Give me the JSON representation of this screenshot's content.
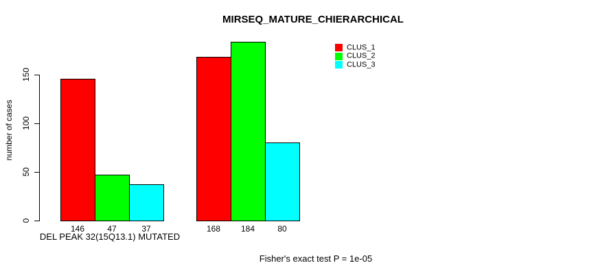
{
  "figure": {
    "title": "MIRSEQ_MATURE_CHIERARCHICAL",
    "annotation": "Fisher's exact test P = 1e-05"
  },
  "chart_data": {
    "type": "bar",
    "title": "MIRSEQ_MATURE_CHIERARCHICAL",
    "xlabel": "DEL PEAK 32(15Q13.1) MUTATED",
    "ylabel": "number of cases",
    "ylim": [
      0,
      184
    ],
    "yticks": [
      0,
      50,
      100,
      150
    ],
    "grid": false,
    "legend_position": "top-right",
    "bar_value_labels_shown": true,
    "categories": [
      "DEL PEAK 32(15Q13.1) MUTATED",
      ""
    ],
    "series": [
      {
        "name": "CLUS_1",
        "color": "#FF0000",
        "values": [
          146,
          168
        ]
      },
      {
        "name": "CLUS_2",
        "color": "#00FF00",
        "values": [
          47,
          184
        ]
      },
      {
        "name": "CLUS_3",
        "color": "#00FFFF",
        "values": [
          37,
          80
        ]
      }
    ],
    "annotation": "Fisher's exact test P = 1e-05"
  }
}
